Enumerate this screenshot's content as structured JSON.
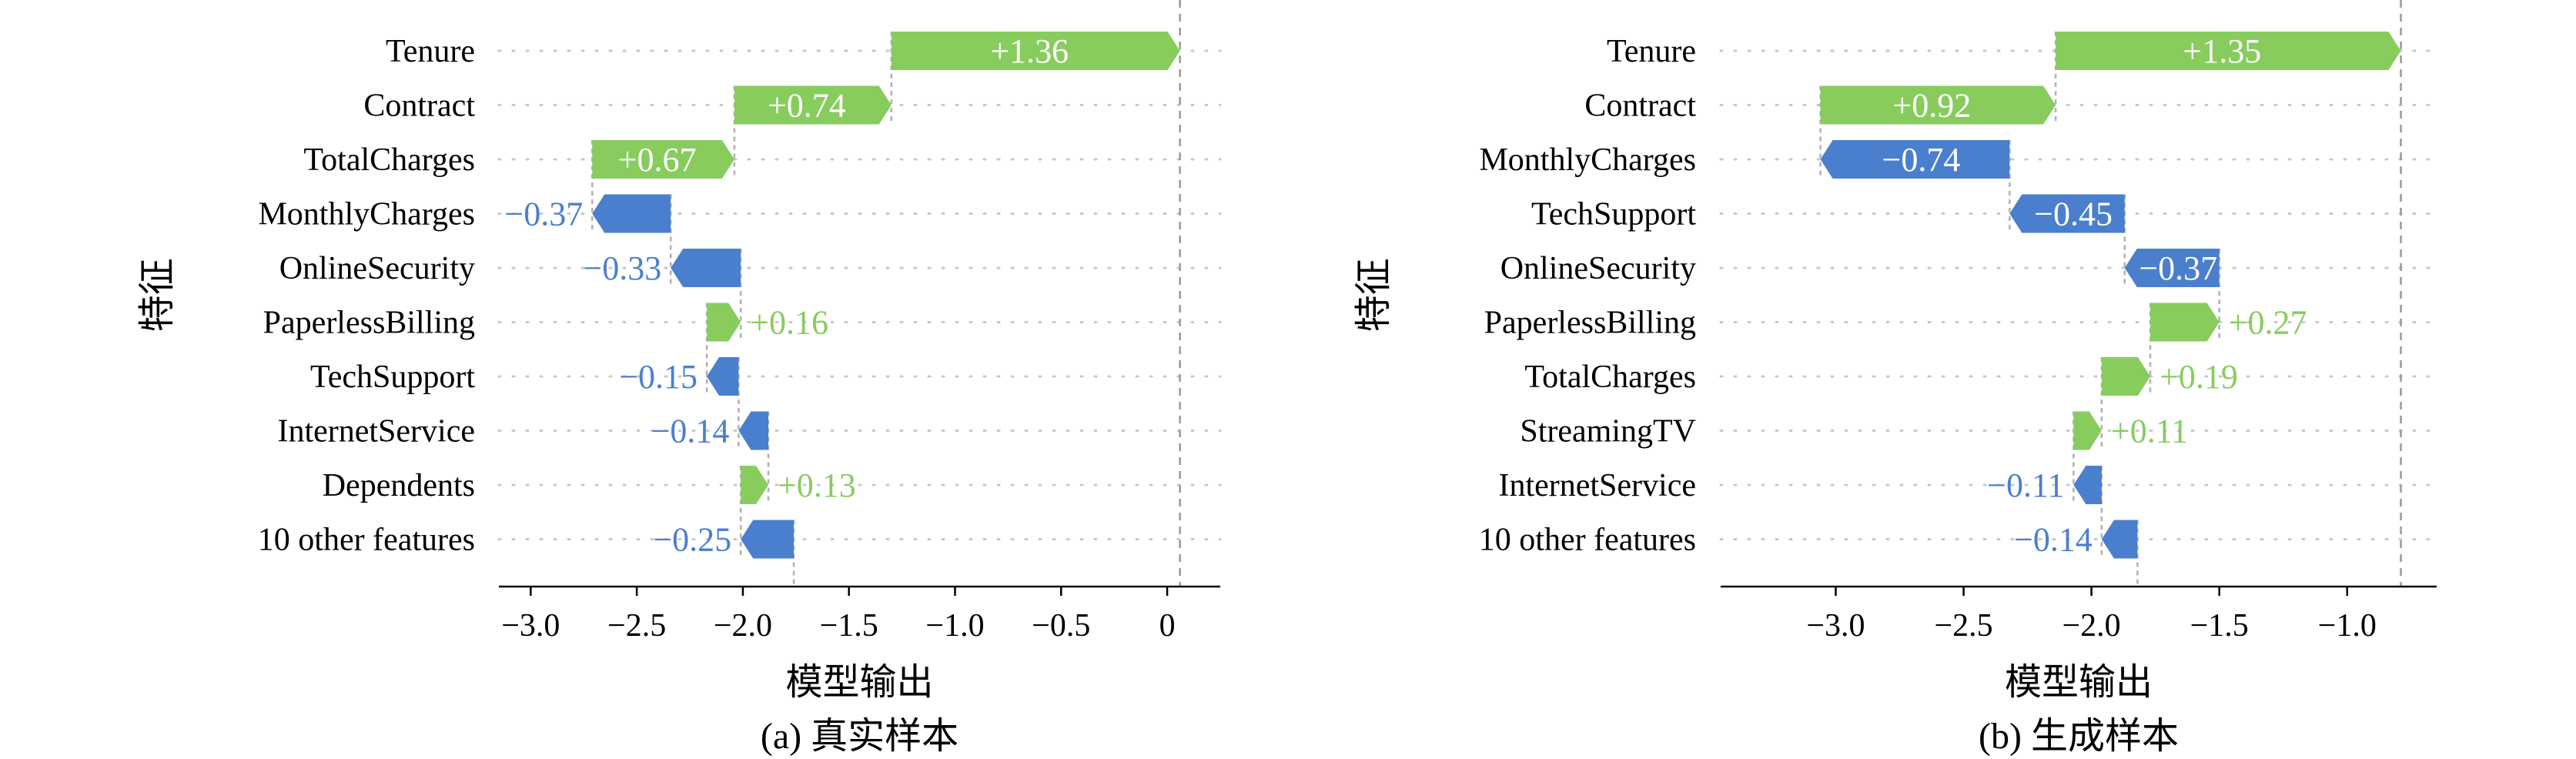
{
  "chart_data": [
    {
      "type": "waterfall",
      "caption": "(a)  真实样本",
      "xlabel": "模型输出",
      "ylabel": "特征",
      "xlim": [
        -3.15,
        0.25
      ],
      "xticks": [
        -3.0,
        -2.5,
        -2.0,
        -1.5,
        -1.0,
        -0.5,
        0
      ],
      "xtick_labels": [
        "−3.0",
        "−2.5",
        "−2.0",
        "−1.5",
        "−1.0",
        "−0.5",
        "0"
      ],
      "final_value": 0.06,
      "grid": "dotted horizontal",
      "bars": [
        {
          "feature": "Tenure",
          "value": 1.36,
          "label": "+1.36"
        },
        {
          "feature": "Contract",
          "value": 0.74,
          "label": "+0.74"
        },
        {
          "feature": "TotalCharges",
          "value": 0.67,
          "label": "+0.67"
        },
        {
          "feature": "MonthlyCharges",
          "value": -0.37,
          "label": "−0.37"
        },
        {
          "feature": "OnlineSecurity",
          "value": -0.33,
          "label": "−0.33"
        },
        {
          "feature": "PaperlessBilling",
          "value": 0.16,
          "label": "+0.16"
        },
        {
          "feature": "TechSupport",
          "value": -0.15,
          "label": "−0.15"
        },
        {
          "feature": "InternetService",
          "value": -0.14,
          "label": "−0.14"
        },
        {
          "feature": "Dependents",
          "value": 0.13,
          "label": "+0.13"
        },
        {
          "feature": "10 other features",
          "value": -0.25,
          "label": "−0.25"
        }
      ]
    },
    {
      "type": "waterfall",
      "caption": "(b)  生成样本",
      "xlabel": "模型输出",
      "ylabel": "特征",
      "xlim": [
        -3.45,
        -0.65
      ],
      "xticks": [
        -3.0,
        -2.5,
        -2.0,
        -1.5,
        -1.0
      ],
      "xtick_labels": [
        "−3.0",
        "−2.5",
        "−2.0",
        "−1.5",
        "−1.0"
      ],
      "final_value": -0.79,
      "grid": "dotted horizontal",
      "bars": [
        {
          "feature": "Tenure",
          "value": 1.35,
          "label": "+1.35"
        },
        {
          "feature": "Contract",
          "value": 0.92,
          "label": "+0.92"
        },
        {
          "feature": "MonthlyCharges",
          "value": -0.74,
          "label": "−0.74"
        },
        {
          "feature": "TechSupport",
          "value": -0.45,
          "label": "−0.45"
        },
        {
          "feature": "OnlineSecurity",
          "value": -0.37,
          "label": "−0.37"
        },
        {
          "feature": "PaperlessBilling",
          "value": 0.27,
          "label": "+0.27"
        },
        {
          "feature": "TotalCharges",
          "value": 0.19,
          "label": "+0.19"
        },
        {
          "feature": "StreamingTV",
          "value": 0.11,
          "label": "+0.11"
        },
        {
          "feature": "InternetService",
          "value": -0.11,
          "label": "−0.11"
        },
        {
          "feature": "10 other features",
          "value": -0.14,
          "label": "−0.14"
        }
      ]
    }
  ],
  "colors": {
    "positive": "#88cc5e",
    "negative": "#4a7fce",
    "axis": "#000000",
    "grid": "#c8c8c8",
    "connector": "#b0b0b0"
  }
}
